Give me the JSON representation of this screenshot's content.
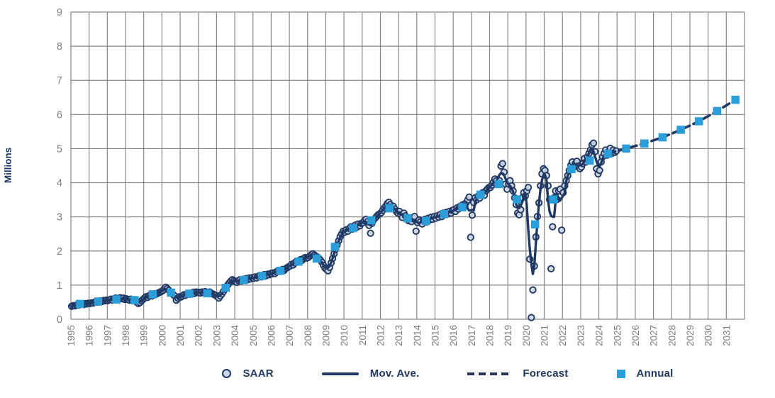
{
  "colors": {
    "navy": "#1f3864",
    "annual_square": "#2b9ed9",
    "saar_fill": "#cdd6e6",
    "grid": "#868686",
    "tick_text": "#7f7f7f"
  },
  "y_axis": {
    "label": "Millions",
    "ticks": [
      0,
      1,
      2,
      3,
      4,
      5,
      6,
      7,
      8,
      9
    ]
  },
  "x_axis": {
    "years": [
      1995,
      1996,
      1997,
      1998,
      1999,
      2000,
      2001,
      2002,
      2003,
      2004,
      2005,
      2006,
      2007,
      2008,
      2009,
      2010,
      2011,
      2012,
      2013,
      2014,
      2015,
      2016,
      2017,
      2018,
      2019,
      2020,
      2021,
      2022,
      2023,
      2024,
      2025,
      2026,
      2027,
      2028,
      2029,
      2030,
      2031
    ]
  },
  "legend": {
    "items": [
      {
        "label": "SAAR",
        "marker": "circle-marker-icon"
      },
      {
        "label": "Mov. Ave.",
        "marker": "solid-line-icon"
      },
      {
        "label": "Forecast",
        "marker": "dashed-line-icon"
      },
      {
        "label": "Annual",
        "marker": "square-marker-icon"
      }
    ]
  },
  "chart_data": {
    "type": "combo",
    "title": "",
    "xlabel": "",
    "ylabel": "Millions",
    "ylim": [
      0,
      9
    ],
    "xlim": [
      1995,
      2032
    ],
    "grid": true,
    "legend_position": "bottom",
    "series": [
      {
        "name": "SAAR",
        "type": "scatter",
        "marker": "circle",
        "x_rule": "points plotted monthly at year + (month - 0.5)/12",
        "monthly": {
          "1995": [
            0.38,
            0.4,
            0.39,
            0.41,
            0.43,
            0.42,
            0.44,
            0.45,
            0.43,
            0.46,
            0.45,
            0.47
          ],
          "1996": [
            0.46,
            0.48,
            0.47,
            0.5,
            0.52,
            0.5,
            0.53,
            0.54,
            0.52,
            0.55,
            0.54,
            0.56
          ],
          "1997": [
            0.55,
            0.57,
            0.59,
            0.56,
            0.6,
            0.62,
            0.59,
            0.61,
            0.63,
            0.6,
            0.62,
            0.58
          ],
          "1998": [
            0.6,
            0.58,
            0.56,
            0.59,
            0.55,
            0.57,
            0.53,
            0.5,
            0.46,
            0.49,
            0.54,
            0.58
          ],
          "1999": [
            0.62,
            0.66,
            0.64,
            0.69,
            0.71,
            0.68,
            0.73,
            0.75,
            0.74,
            0.77,
            0.79,
            0.81
          ],
          "2000": [
            0.84,
            0.88,
            0.94,
            0.9,
            0.85,
            0.8,
            0.76,
            0.72,
            0.68,
            0.56,
            0.62,
            0.66
          ],
          "2001": [
            0.65,
            0.68,
            0.72,
            0.7,
            0.74,
            0.76,
            0.73,
            0.77,
            0.79,
            0.76,
            0.8,
            0.78
          ],
          "2002": [
            0.79,
            0.77,
            0.8,
            0.78,
            0.81,
            0.79,
            0.77,
            0.8,
            0.76,
            0.74,
            0.72,
            0.7
          ],
          "2003": [
            0.66,
            0.62,
            0.68,
            0.74,
            0.81,
            0.88,
            0.95,
            1.01,
            1.07,
            1.12,
            1.16,
            1.13
          ],
          "2004": [
            1.1,
            1.08,
            1.13,
            1.16,
            1.12,
            1.17,
            1.15,
            1.19,
            1.16,
            1.21,
            1.18,
            1.22
          ],
          "2005": [
            1.2,
            1.24,
            1.21,
            1.26,
            1.28,
            1.24,
            1.29,
            1.31,
            1.27,
            1.32,
            1.3,
            1.34
          ],
          "2006": [
            1.33,
            1.36,
            1.34,
            1.39,
            1.42,
            1.4,
            1.44,
            1.46,
            1.43,
            1.48,
            1.51,
            1.54
          ],
          "2007": [
            1.56,
            1.61,
            1.59,
            1.65,
            1.69,
            1.67,
            1.72,
            1.75,
            1.73,
            1.78,
            1.81,
            1.79
          ],
          "2008": [
            1.81,
            1.85,
            1.89,
            1.92,
            1.88,
            1.85,
            1.82,
            1.78,
            1.73,
            1.67,
            1.58,
            1.5
          ],
          "2009": [
            1.46,
            1.42,
            1.52,
            1.65,
            1.78,
            1.92,
            2.05,
            2.18,
            2.3,
            2.42,
            2.5,
            2.58
          ],
          "2010": [
            2.55,
            2.62,
            2.58,
            2.66,
            2.71,
            2.64,
            2.72,
            2.76,
            2.7,
            2.79,
            2.74,
            2.81
          ],
          "2011": [
            2.83,
            2.89,
            2.93,
            2.86,
            2.75,
            2.52,
            2.81,
            2.91,
            2.96,
            3.01,
            3.06,
            3.09
          ],
          "2012": [
            3.12,
            3.19,
            3.26,
            3.31,
            3.39,
            3.43,
            3.36,
            3.29,
            3.31,
            3.23,
            3.16,
            3.11
          ],
          "2013": [
            3.16,
            3.06,
            2.98,
            3.11,
            3.03,
            2.96,
            2.89,
            2.93,
            2.86,
            2.96,
            3.01,
            2.58
          ],
          "2014": [
            2.83,
            2.91,
            2.86,
            2.79,
            2.89,
            2.93,
            2.85,
            2.96,
            2.91,
            2.99,
            2.93,
            3.01
          ],
          "2015": [
            2.96,
            3.03,
            2.99,
            3.07,
            3.01,
            3.11,
            3.06,
            3.13,
            3.09,
            3.16,
            3.11,
            3.19
          ],
          "2016": [
            3.21,
            3.16,
            3.26,
            3.23,
            3.31,
            3.29,
            3.36,
            3.33,
            3.41,
            3.49,
            3.58,
            2.4
          ],
          "2017": [
            3.05,
            3.42,
            3.56,
            3.5,
            3.61,
            3.55,
            3.66,
            3.71,
            3.63,
            3.76,
            3.81,
            3.86
          ],
          "2018": [
            3.86,
            3.93,
            4.01,
            4.11,
            4.06,
            3.99,
            4.06,
            4.49,
            4.56,
            4.31,
            3.96,
            3.81
          ],
          "2019": [
            3.96,
            4.06,
            3.91,
            3.76,
            3.56,
            3.36,
            3.11,
            3.06,
            3.21,
            3.56,
            3.71,
            3.61
          ],
          "2020": [
            3.76,
            3.86,
            1.76,
            0.05,
            0.86,
            1.56,
            2.41,
            3.01,
            3.41,
            3.91,
            4.26,
            4.41
          ],
          "2021": [
            4.36,
            4.21,
            3.91,
            3.51,
            1.48,
            2.71,
            3.56,
            3.76,
            3.51,
            3.76,
            3.81,
            2.61
          ],
          "2022": [
            3.71,
            3.91,
            4.06,
            4.21,
            4.36,
            4.51,
            4.61,
            4.46,
            4.56,
            4.63,
            4.49,
            4.41
          ],
          "2023": [
            4.46,
            4.56,
            4.71,
            4.61,
            4.76,
            4.86,
            4.96,
            5.11,
            5.16,
            4.91,
            4.41,
            4.26
          ],
          "2024": [
            4.36,
            4.61,
            4.76,
            4.86,
            4.96,
            4.81,
            4.91,
            5.01,
            4.86,
            4.96,
            4.89,
            4.93
          ]
        }
      },
      {
        "name": "Mov. Ave.",
        "type": "line",
        "style": "solid",
        "derived": "centered 5-month moving average of SAAR series"
      },
      {
        "name": "Forecast",
        "type": "line",
        "style": "dashed",
        "x": [
          2024.5,
          2025.5,
          2026.5,
          2027.5,
          2028.5,
          2029.5,
          2030.5,
          2031.5
        ],
        "values": [
          4.85,
          5.0,
          5.15,
          5.33,
          5.55,
          5.8,
          6.1,
          6.43
        ]
      },
      {
        "name": "Annual",
        "type": "scatter",
        "marker": "square",
        "x_rule": "points plotted at year + 0.5",
        "years": [
          1995,
          1996,
          1997,
          1998,
          1999,
          2000,
          2001,
          2002,
          2003,
          2004,
          2005,
          2006,
          2007,
          2008,
          2009,
          2010,
          2011,
          2012,
          2013,
          2014,
          2015,
          2016,
          2017,
          2018,
          2019,
          2020,
          2021,
          2022,
          2023,
          2024,
          2025,
          2026,
          2027,
          2028,
          2029,
          2030,
          2031
        ],
        "values": [
          0.45,
          0.52,
          0.58,
          0.56,
          0.73,
          0.78,
          0.75,
          0.76,
          0.92,
          1.15,
          1.27,
          1.42,
          1.69,
          1.78,
          2.12,
          2.67,
          2.9,
          3.25,
          2.96,
          2.88,
          3.08,
          3.28,
          3.65,
          3.96,
          3.51,
          2.78,
          3.51,
          4.4,
          4.65,
          4.85,
          5.0,
          5.15,
          5.33,
          5.55,
          5.8,
          6.1,
          6.43
        ]
      }
    ]
  }
}
